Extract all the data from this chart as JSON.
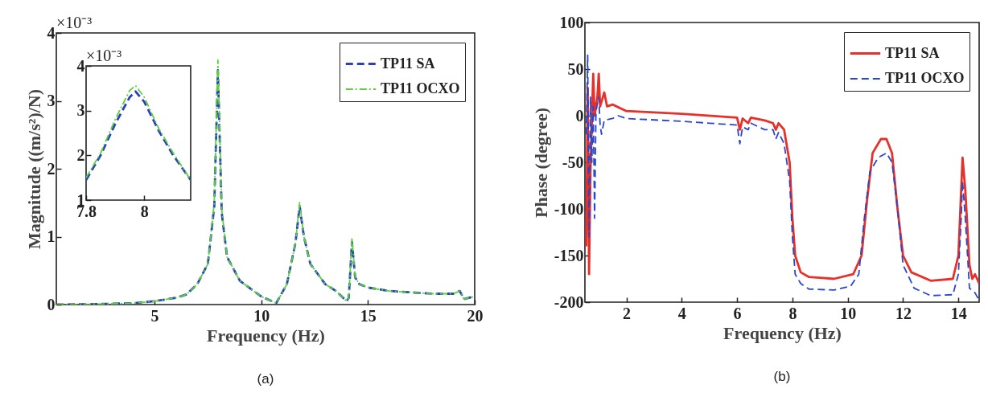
{
  "chart_data": [
    {
      "type": "line",
      "title": "(a)",
      "xlabel": "Frequency (Hz)",
      "ylabel": "Magnitude ((m/s²)/N)",
      "annotations": [
        "×10⁻³"
      ],
      "xlim": [
        0.4,
        20
      ],
      "xticks": [
        5,
        10,
        15,
        20
      ],
      "ylim": [
        0,
        4
      ],
      "yticks": [
        0,
        1,
        2,
        3,
        4
      ],
      "grid": false,
      "legend": "top right",
      "marker": "none",
      "series": [
        {
          "name": "TP11 SA",
          "color": "#2b3fbf",
          "line_style": "dashed",
          "x": [
            0.4,
            2,
            4,
            5,
            6,
            6.5,
            7,
            7.5,
            7.8,
            7.97,
            8.15,
            8.4,
            9,
            10,
            10.7,
            11.2,
            11.6,
            11.8,
            12,
            12.3,
            13,
            13.5,
            14,
            14.1,
            14.25,
            14.4,
            14.6,
            15,
            16,
            18,
            19,
            19.3,
            19.5,
            20
          ],
          "values": [
            0,
            0.005,
            0.02,
            0.05,
            0.1,
            0.15,
            0.3,
            0.6,
            1.45,
            3.45,
            1.35,
            0.7,
            0.35,
            0.12,
            0.02,
            0.3,
            0.9,
            1.45,
            1.0,
            0.6,
            0.3,
            0.2,
            0.05,
            0.1,
            0.92,
            0.4,
            0.3,
            0.25,
            0.2,
            0.16,
            0.16,
            0.2,
            0.08,
            0.12
          ]
        },
        {
          "name": "TP11 OCXO",
          "color": "#5bd13a",
          "line_style": "dashed",
          "x": [
            0.4,
            2,
            4,
            5,
            6,
            6.5,
            7,
            7.5,
            7.8,
            7.97,
            8.15,
            8.4,
            9,
            10,
            10.7,
            11.2,
            11.6,
            11.8,
            12,
            12.3,
            13,
            13.5,
            14,
            14.1,
            14.25,
            14.4,
            14.6,
            15,
            16,
            18,
            19,
            19.3,
            19.5,
            20
          ],
          "values": [
            0,
            0.005,
            0.02,
            0.05,
            0.1,
            0.15,
            0.3,
            0.6,
            1.5,
            3.6,
            1.4,
            0.7,
            0.35,
            0.12,
            0.02,
            0.3,
            0.9,
            1.5,
            1.0,
            0.6,
            0.3,
            0.2,
            0.05,
            0.1,
            0.98,
            0.4,
            0.3,
            0.25,
            0.2,
            0.16,
            0.16,
            0.2,
            0.08,
            0.12
          ]
        }
      ]
    },
    {
      "type": "line",
      "annotations": [
        "×10⁻³"
      ],
      "xlim": [
        7.8,
        8.16
      ],
      "xticks": [
        7.8,
        8
      ],
      "ylim": [
        1,
        4
      ],
      "yticks": [
        1,
        2,
        3,
        4
      ],
      "grid": false,
      "marker": "none",
      "series": [
        {
          "color": "#2b3fbf",
          "line_style": "dashed",
          "x": [
            7.8,
            7.85,
            7.9,
            7.95,
            7.97,
            8.0,
            8.05,
            8.1,
            8.16
          ],
          "values": [
            1.45,
            2.0,
            2.7,
            3.3,
            3.43,
            3.2,
            2.55,
            2.0,
            1.45
          ]
        },
        {
          "color": "#5bd13a",
          "line_style": "dashed",
          "x": [
            7.8,
            7.85,
            7.9,
            7.95,
            7.97,
            8.0,
            8.05,
            8.1,
            8.16
          ],
          "values": [
            1.5,
            2.05,
            2.8,
            3.45,
            3.56,
            3.3,
            2.6,
            2.05,
            1.45
          ]
        }
      ]
    },
    {
      "type": "line",
      "title": "(b)",
      "xlabel": "Frequency (Hz)",
      "ylabel": "Phase (degree)",
      "xlim": [
        0.5,
        14.75
      ],
      "xticks": [
        2,
        4,
        6,
        8,
        10,
        12,
        14
      ],
      "ylim": [
        -200,
        100
      ],
      "yticks": [
        -200,
        -150,
        -100,
        -50,
        0,
        50,
        100
      ],
      "grid": false,
      "legend": "top right",
      "marker": "none",
      "series": [
        {
          "name": "TP11 SA",
          "color": "#e8302a",
          "line_style": "solid",
          "x": [
            0.55,
            0.6,
            0.65,
            0.7,
            0.8,
            0.85,
            0.95,
            1.0,
            1.05,
            1.2,
            1.3,
            1.5,
            2,
            4,
            6,
            6.1,
            6.2,
            6.4,
            6.5,
            7,
            7.3,
            7.4,
            7.5,
            7.7,
            7.9,
            8.0,
            8.1,
            8.3,
            8.6,
            9.5,
            10.2,
            10.5,
            10.7,
            10.9,
            11.2,
            11.4,
            11.6,
            11.8,
            12,
            12.3,
            13,
            13.8,
            14.0,
            14.1,
            14.15,
            14.25,
            14.4,
            14.5,
            14.6,
            14.75
          ],
          "values": [
            -140,
            30,
            -170,
            -60,
            45,
            0,
            20,
            45,
            10,
            25,
            10,
            12,
            5,
            2,
            -2,
            -15,
            -3,
            -8,
            -2,
            -5,
            -8,
            -15,
            -8,
            -15,
            -50,
            -110,
            -150,
            -168,
            -173,
            -175,
            -170,
            -150,
            -90,
            -40,
            -25,
            -25,
            -40,
            -100,
            -150,
            -168,
            -177,
            -175,
            -150,
            -80,
            -45,
            -80,
            -160,
            -175,
            -170,
            -180
          ]
        },
        {
          "name": "TP11 OCXO",
          "color": "#2b47c9",
          "line_style": "dashed",
          "x": [
            0.55,
            0.6,
            0.65,
            0.7,
            0.75,
            0.8,
            0.85,
            0.9,
            1.0,
            1.05,
            1.1,
            1.2,
            1.5,
            1.7,
            2,
            4,
            5,
            6,
            6.1,
            6.2,
            6.4,
            6.5,
            7,
            7.3,
            7.4,
            7.5,
            7.7,
            7.9,
            8.0,
            8.1,
            8.3,
            8.6,
            9.5,
            10.1,
            10.4,
            10.6,
            10.8,
            11.1,
            11.4,
            11.6,
            11.8,
            12,
            12.4,
            13,
            13.8,
            14.0,
            14.1,
            14.15,
            14.25,
            14.4,
            14.6,
            14.75
          ],
          "values": [
            -20,
            65,
            -130,
            20,
            -50,
            10,
            -110,
            5,
            20,
            -10,
            -20,
            -5,
            -3,
            0,
            -3,
            -6,
            -8,
            -10,
            -30,
            -12,
            -15,
            -8,
            -15,
            -15,
            -25,
            -18,
            -30,
            -70,
            -130,
            -170,
            -180,
            -186,
            -187,
            -183,
            -170,
            -110,
            -60,
            -45,
            -40,
            -50,
            -100,
            -160,
            -185,
            -193,
            -192,
            -170,
            -110,
            -70,
            -110,
            -185,
            -190,
            -198
          ]
        }
      ]
    }
  ]
}
